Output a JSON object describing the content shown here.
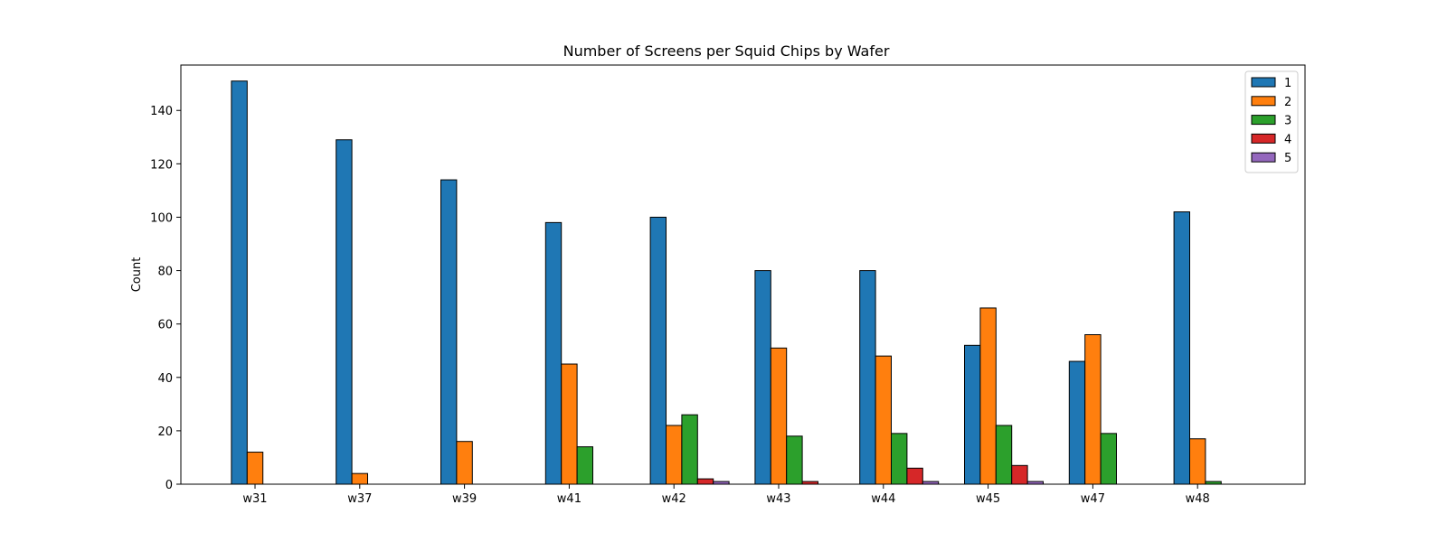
{
  "chart_data": {
    "type": "bar",
    "title": "Number of Screens per Squid Chips by Wafer",
    "xlabel": "",
    "ylabel": "Count",
    "ylim": [
      0,
      157
    ],
    "yticks": [
      0,
      20,
      40,
      60,
      80,
      100,
      120,
      140
    ],
    "categories": [
      "w31",
      "w37",
      "w39",
      "w41",
      "w42",
      "w43",
      "w44",
      "w45",
      "w47",
      "w48"
    ],
    "legend_position": "top-right",
    "grid": false,
    "series": [
      {
        "name": "1",
        "color": "#1f77b4",
        "values": [
          151,
          129,
          114,
          98,
          100,
          80,
          80,
          52,
          46,
          102
        ]
      },
      {
        "name": "2",
        "color": "#ff7f0e",
        "values": [
          12,
          4,
          16,
          45,
          22,
          51,
          48,
          66,
          56,
          17
        ]
      },
      {
        "name": "3",
        "color": "#2ca02c",
        "values": [
          0,
          0,
          0,
          14,
          26,
          18,
          19,
          22,
          19,
          1
        ]
      },
      {
        "name": "4",
        "color": "#d62728",
        "values": [
          0,
          0,
          0,
          0,
          2,
          1,
          6,
          7,
          0,
          0
        ]
      },
      {
        "name": "5",
        "color": "#9467bd",
        "values": [
          0,
          0,
          0,
          0,
          1,
          0,
          1,
          1,
          0,
          0
        ]
      }
    ]
  }
}
